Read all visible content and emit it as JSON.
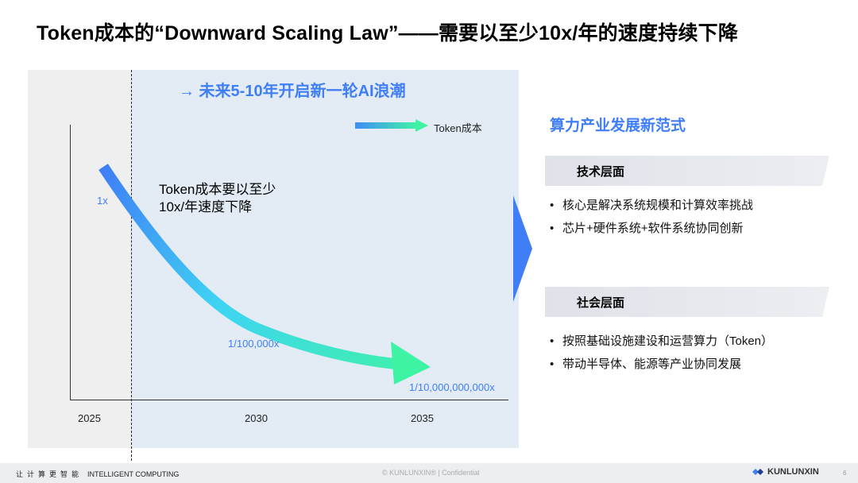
{
  "slide": {
    "title": "Token成本的“Downward Scaling Law”——需要以至少10x/年的速度持续下降"
  },
  "chart": {
    "wave_label": "→ 未来5-10年开启新一轮AI浪潮",
    "legend": "Token成本",
    "annotation_line1": "Token成本要以至少",
    "annotation_line2": "10x/年速度下降",
    "point_labels": [
      "1x",
      "1/100,000x",
      "1/10,000,000,000x"
    ],
    "x_ticks": [
      "2025",
      "2030",
      "2035"
    ],
    "gradient_colors": [
      "#3f7ef6",
      "#3fd7f3",
      "#3ff3a5"
    ]
  },
  "chart_data": {
    "type": "line",
    "title": "",
    "xlabel": "",
    "ylabel": "",
    "x": [
      2025,
      2030,
      2035
    ],
    "series": [
      {
        "name": "Token成本",
        "values": [
          "1x",
          "1/100,000x",
          "1/10,000,000,000x"
        ]
      }
    ],
    "x_ticks": [
      "2025",
      "2030",
      "2035"
    ],
    "y_scale": "log",
    "grid": false,
    "legend": "top-right"
  },
  "right_panel": {
    "title": "算力产业发展新范式",
    "sections": [
      {
        "label": "技术层面",
        "bullets": [
          "核心是解决系统规模和计算效率挑战",
          "芯片+硬件系统+软件系统协同创新"
        ]
      },
      {
        "label": "社会层面",
        "bullets": [
          "按照基础设施建设和运营算力（Token）",
          "带动半导体、能源等产业协同发展"
        ]
      }
    ]
  },
  "footer": {
    "left_cn": "让计算更智能",
    "left_en": "INTELLIGENT COMPUTING",
    "center": "© KUNLUNXIN® | Confidential",
    "logo": "KUNLUNXIN",
    "page": "6"
  },
  "colors": {
    "accent": "#3f7ef6",
    "panel_blue": "#e3ecf5",
    "panel_gray": "#efefef"
  }
}
